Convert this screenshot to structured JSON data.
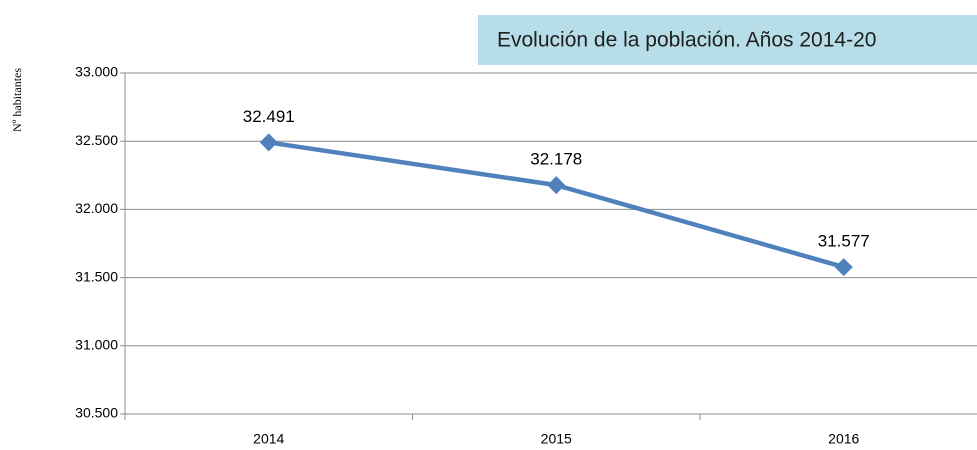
{
  "chart_data": {
    "type": "line",
    "title": "Evolución de la población. Años 2014-20",
    "y_label": "Nº habitantes",
    "categories": [
      "2014",
      "2015",
      "2016"
    ],
    "series": [
      {
        "name": "Nº habitantes",
        "color": "#4f81bd",
        "values": [
          32491,
          32178,
          31577
        ],
        "value_labels": [
          "32.491",
          "32.178",
          "31.577"
        ]
      }
    ],
    "ylim": [
      30500,
      33000
    ],
    "yticks": [
      {
        "value": 30500,
        "label": "30.500"
      },
      {
        "value": 31000,
        "label": "31.000"
      },
      {
        "value": 31500,
        "label": "31.500"
      },
      {
        "value": 32000,
        "label": "32.000"
      },
      {
        "value": 32500,
        "label": "32.500"
      },
      {
        "value": 33000,
        "label": "33.000"
      }
    ],
    "grid": true
  }
}
